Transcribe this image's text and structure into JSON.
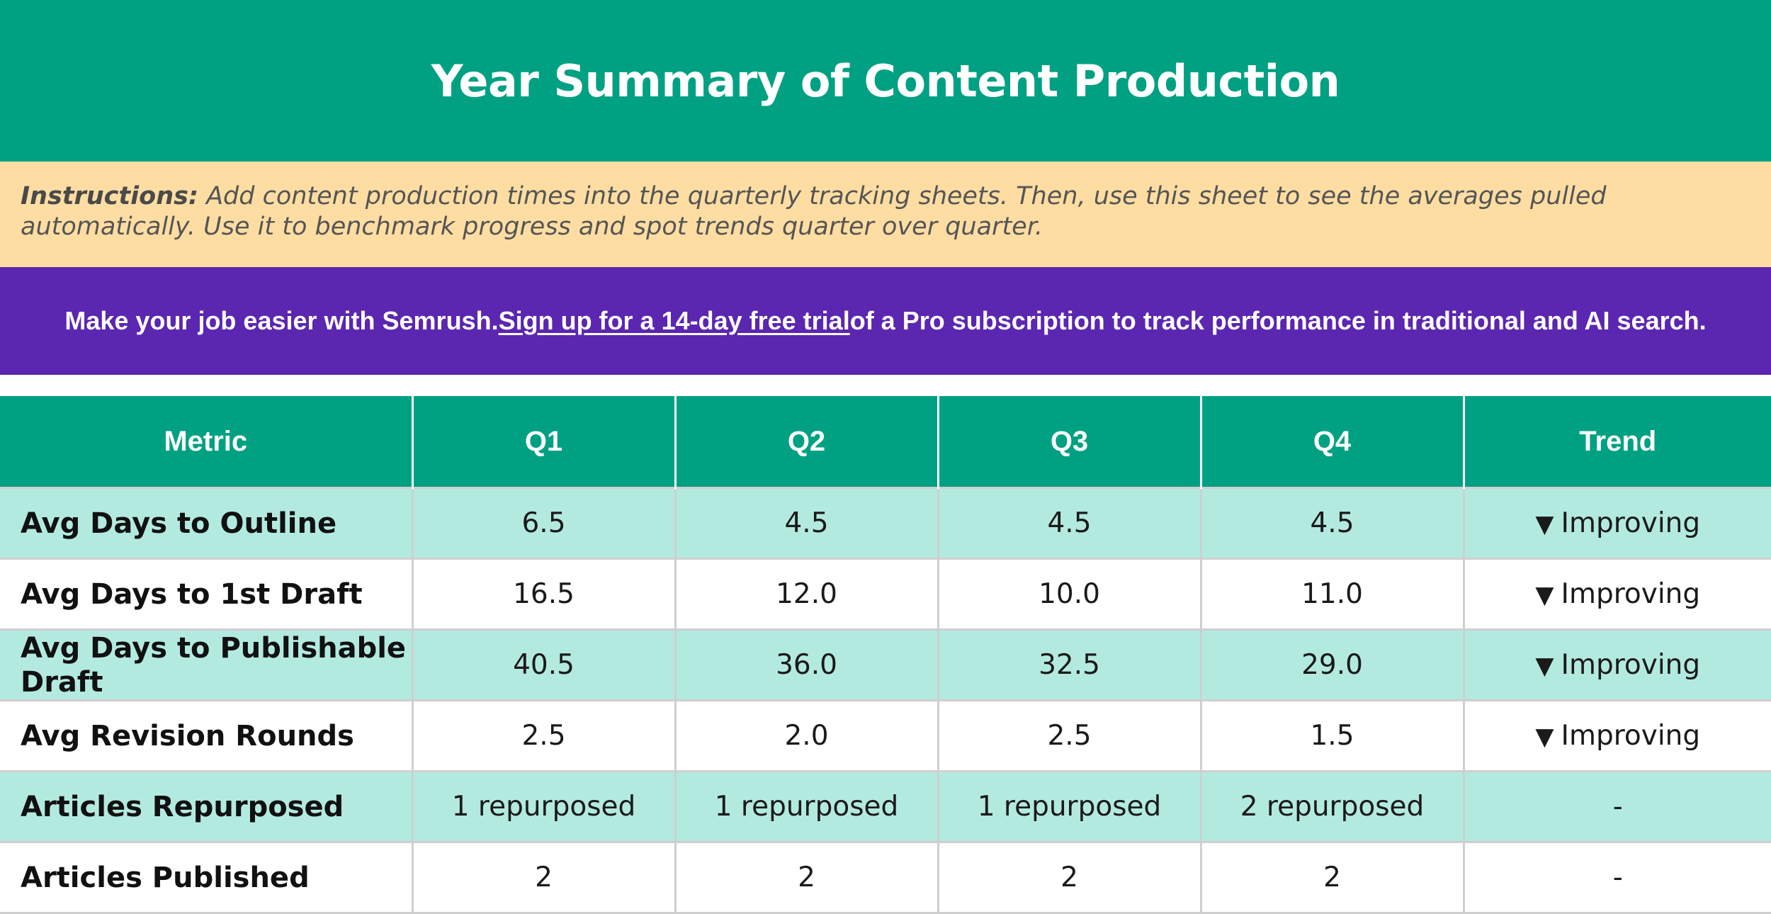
{
  "title": "Year Summary of Content Production",
  "instructions": {
    "lead": "Instructions:",
    "body": " Add content production times into the quarterly tracking sheets. Then, use this sheet to see the averages pulled automatically. Use it to benchmark progress and spot trends quarter over quarter."
  },
  "promo": {
    "before": "Make your job easier with Semrush. ",
    "link": "Sign up for a 14-day free trial",
    "after": " of a Pro subscription to track performance in traditional and AI search."
  },
  "table": {
    "headers": [
      "Metric",
      "Q1",
      "Q2",
      "Q3",
      "Q4",
      "Trend"
    ],
    "rows": [
      {
        "metric": "Avg Days to Outline",
        "values": [
          "6.5",
          "4.5",
          "4.5",
          "4.5"
        ],
        "trend_symbol": "▼",
        "trend": "Improving"
      },
      {
        "metric": "Avg Days to 1st Draft",
        "values": [
          "16.5",
          "12.0",
          "10.0",
          "11.0"
        ],
        "trend_symbol": "▼",
        "trend": "Improving"
      },
      {
        "metric": "Avg Days to Publishable Draft",
        "values": [
          "40.5",
          "36.0",
          "32.5",
          "29.0"
        ],
        "trend_symbol": "▼",
        "trend": "Improving"
      },
      {
        "metric": "Avg Revision Rounds",
        "values": [
          "2.5",
          "2.0",
          "2.5",
          "1.5"
        ],
        "trend_symbol": "▼",
        "trend": "Improving"
      },
      {
        "metric": "Articles Repurposed",
        "values": [
          "1 repurposed",
          "1 repurposed",
          "1 repurposed",
          "2 repurposed"
        ],
        "trend_symbol": "",
        "trend": "-"
      },
      {
        "metric": "Articles Published",
        "values": [
          "2",
          "2",
          "2",
          "2"
        ],
        "trend_symbol": "",
        "trend": "-"
      }
    ]
  },
  "colors": {
    "title_bg": "#00a182",
    "instructions_bg": "#fedda3",
    "promo_bg": "#5b26b0",
    "header_bg": "#00a182",
    "row_alt_bg": "#b3eae0"
  }
}
